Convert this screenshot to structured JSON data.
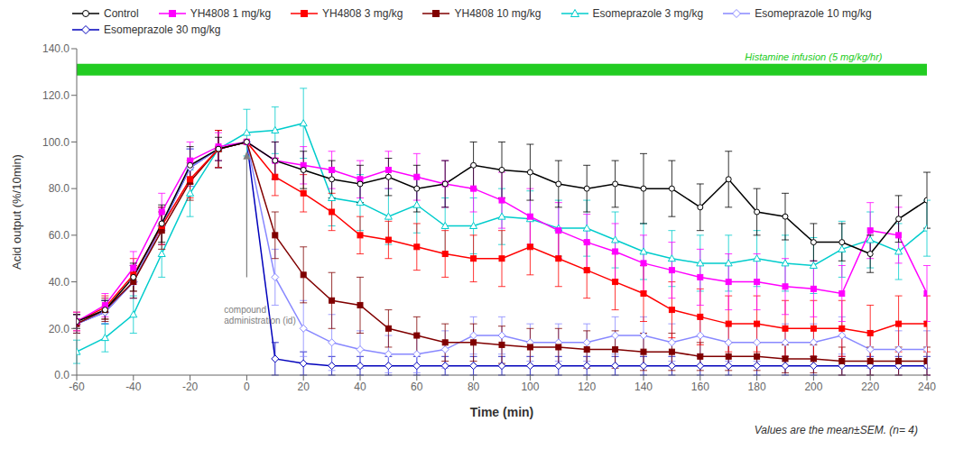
{
  "chart_data": {
    "type": "line",
    "x": [
      -60,
      -50,
      -40,
      -30,
      -20,
      -10,
      0,
      10,
      20,
      30,
      40,
      50,
      60,
      70,
      80,
      90,
      100,
      110,
      120,
      130,
      140,
      150,
      160,
      170,
      180,
      190,
      200,
      210,
      220,
      230,
      240
    ],
    "series": [
      {
        "name": "Control",
        "color": "#000000",
        "marker": "circle-open",
        "values": [
          23,
          28,
          42,
          65,
          90,
          97,
          100,
          92,
          88,
          84,
          82,
          85,
          80,
          82,
          90,
          88,
          87,
          82,
          80,
          82,
          80,
          80,
          72,
          84,
          70,
          68,
          57,
          57,
          52,
          67,
          75
        ],
        "errors": [
          3,
          4,
          6,
          8,
          8,
          5,
          0,
          8,
          8,
          8,
          8,
          8,
          10,
          10,
          10,
          12,
          12,
          10,
          10,
          10,
          15,
          12,
          10,
          12,
          10,
          10,
          8,
          8,
          8,
          10,
          12
        ]
      },
      {
        "name": "YH4808 1 mg/kg",
        "color": "#FF00FF",
        "marker": "square",
        "values": [
          23,
          30,
          46,
          70,
          92,
          98,
          100,
          92,
          90,
          88,
          84,
          88,
          85,
          82,
          80,
          75,
          68,
          62,
          57,
          53,
          48,
          45,
          42,
          40,
          40,
          38,
          37,
          35,
          62,
          60,
          35
        ],
        "errors": [
          4,
          5,
          7,
          8,
          8,
          6,
          0,
          8,
          8,
          8,
          8,
          8,
          10,
          10,
          10,
          12,
          12,
          12,
          12,
          12,
          12,
          12,
          12,
          12,
          12,
          12,
          12,
          12,
          12,
          12,
          12
        ]
      },
      {
        "name": "YH4808 3 mg/kg",
        "color": "#FF0000",
        "marker": "square",
        "values": [
          23,
          29,
          43,
          64,
          84,
          97,
          100,
          85,
          78,
          70,
          60,
          58,
          55,
          52,
          50,
          50,
          55,
          50,
          45,
          40,
          35,
          28,
          25,
          22,
          22,
          20,
          20,
          20,
          18,
          22,
          22
        ],
        "errors": [
          4,
          5,
          7,
          8,
          8,
          8,
          0,
          8,
          8,
          8,
          8,
          8,
          10,
          10,
          10,
          12,
          12,
          12,
          12,
          12,
          12,
          12,
          12,
          12,
          12,
          12,
          12,
          12,
          12,
          12,
          12
        ]
      },
      {
        "name": "YH4808 10 mg/kg",
        "color": "#800000",
        "marker": "square",
        "values": [
          22,
          28,
          40,
          62,
          83,
          97,
          100,
          60,
          43,
          32,
          30,
          20,
          17,
          14,
          14,
          13,
          12,
          12,
          11,
          11,
          10,
          10,
          8,
          8,
          8,
          7,
          7,
          6,
          6,
          6,
          6
        ],
        "errors": [
          4,
          5,
          7,
          8,
          8,
          8,
          0,
          10,
          12,
          12,
          12,
          8,
          8,
          8,
          8,
          8,
          8,
          8,
          8,
          8,
          8,
          8,
          6,
          6,
          6,
          6,
          6,
          6,
          6,
          6,
          6
        ]
      },
      {
        "name": "Esomeprazole 3 mg/kg",
        "color": "#00CCCC",
        "marker": "triangle-open",
        "values": [
          10,
          16,
          26,
          52,
          78,
          97,
          104,
          105,
          108,
          76,
          74,
          68,
          73,
          64,
          64,
          68,
          67,
          63,
          63,
          58,
          53,
          50,
          48,
          48,
          50,
          48,
          47,
          54,
          58,
          53,
          63
        ],
        "errors": [
          5,
          6,
          8,
          10,
          10,
          8,
          10,
          10,
          15,
          12,
          12,
          12,
          12,
          12,
          12,
          12,
          12,
          12,
          12,
          12,
          12,
          12,
          12,
          12,
          12,
          12,
          12,
          12,
          12,
          12,
          12
        ]
      },
      {
        "name": "Esomeprazole 10 mg/kg",
        "color": "#8888FF",
        "marker": "diamond-open",
        "values": [
          22,
          27,
          40,
          64,
          89,
          97,
          100,
          42,
          20,
          14,
          11,
          9,
          9,
          11,
          17,
          17,
          14,
          14,
          14,
          17,
          17,
          14,
          17,
          14,
          14,
          14,
          14,
          17,
          11,
          11,
          11
        ],
        "errors": [
          4,
          5,
          7,
          8,
          8,
          8,
          0,
          12,
          12,
          12,
          8,
          8,
          8,
          8,
          8,
          8,
          8,
          8,
          8,
          8,
          8,
          8,
          8,
          8,
          8,
          8,
          8,
          8,
          8,
          8,
          8
        ]
      },
      {
        "name": "Esomeprazole 30 mg/kg",
        "color": "#0000BB",
        "marker": "diamond-open",
        "values": [
          22,
          27,
          40,
          64,
          89,
          97,
          100,
          7,
          5,
          4,
          4,
          4,
          4,
          4,
          4,
          4,
          4,
          4,
          4,
          4,
          4,
          4,
          4,
          4,
          4,
          4,
          4,
          4,
          4,
          4,
          4
        ],
        "errors": [
          4,
          5,
          7,
          8,
          8,
          8,
          0,
          7,
          5,
          4,
          4,
          4,
          4,
          4,
          4,
          4,
          4,
          4,
          4,
          4,
          4,
          4,
          4,
          4,
          4,
          4,
          4,
          4,
          4,
          4,
          4
        ]
      }
    ],
    "xlabel": "Time (min)",
    "ylabel": "Acid output (%/10min)",
    "xlim": [
      -60,
      240
    ],
    "ylim": [
      0,
      140
    ],
    "xticks": [
      -60,
      -40,
      -20,
      0,
      20,
      40,
      60,
      80,
      100,
      120,
      140,
      160,
      180,
      200,
      220,
      240
    ],
    "yticks": [
      {
        "value": 0,
        "label": "0.0"
      },
      {
        "value": 20,
        "label": "20.0"
      },
      {
        "value": 40,
        "label": "40.0"
      },
      {
        "value": 60,
        "label": "60.0"
      },
      {
        "value": 80,
        "label": "80.0"
      },
      {
        "value": 100,
        "label": "100.0"
      },
      {
        "value": 120,
        "label": "120.0"
      },
      {
        "value": 140,
        "label": "140.0"
      }
    ],
    "grid": false,
    "legend": "top",
    "annotations": [
      {
        "text": "Histamine  infusion (5 mg/kg/hr)",
        "x": 200,
        "band": [
          128.5,
          133.5
        ],
        "color": "#22CC22"
      },
      {
        "text": "compound\nadministration (id)",
        "x": -8,
        "y": 30,
        "arrow": {
          "from": [
            0,
            42
          ],
          "to": [
            0,
            96
          ]
        }
      },
      {
        "text": "Values are the mean±SEM. (n= 4)"
      }
    ]
  }
}
